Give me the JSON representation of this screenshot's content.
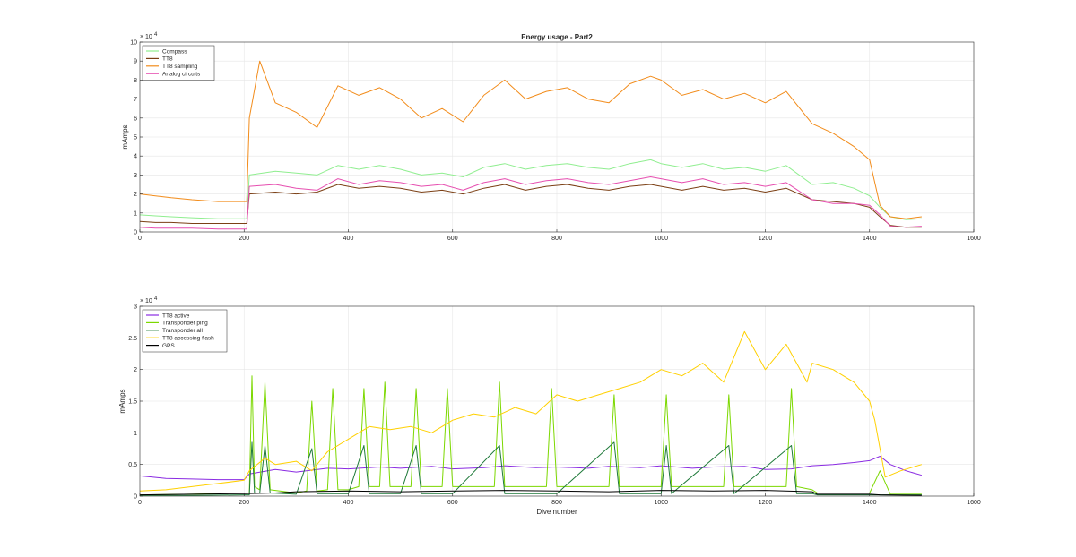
{
  "colors": {
    "compass": "#90ee90",
    "tt8": "#7b3f14",
    "tt8_sampling": "#f28c1b",
    "analog": "#e64fb0",
    "tt8_active": "#8a2be2",
    "transponder_ping": "#7cd800",
    "transponder_all": "#1f7a3a",
    "tt8_flash": "#ffd000",
    "gps": "#000000",
    "grid": "#e6e6e6",
    "axis": "#262626"
  },
  "chart_data": [
    {
      "type": "line",
      "title": "Energy usage - Part2",
      "xlabel": "",
      "ylabel": "mAmps",
      "y_exponent": "× 10",
      "y_exponent_power": "4",
      "xlim": [
        0,
        1600
      ],
      "ylim": [
        0,
        100000
      ],
      "xticks": [
        0,
        200,
        400,
        600,
        800,
        1000,
        1200,
        1400,
        1600
      ],
      "xtick_labels": [
        "0",
        "200",
        "400",
        "600",
        "800",
        "1000",
        "1200",
        "1400",
        "1600"
      ],
      "yticks": [
        0,
        10000,
        20000,
        30000,
        40000,
        50000,
        60000,
        70000,
        80000,
        90000,
        100000
      ],
      "ytick_labels": [
        "0",
        "1",
        "2",
        "3",
        "4",
        "5",
        "6",
        "7",
        "8",
        "9",
        "10"
      ],
      "grid": true,
      "legend_position": "top-left",
      "series": [
        {
          "name": "Compass",
          "color_key": "compass",
          "x": [
            0,
            30,
            60,
            100,
            150,
            205,
            210,
            260,
            300,
            340,
            380,
            420,
            460,
            500,
            540,
            580,
            620,
            660,
            700,
            740,
            780,
            820,
            860,
            900,
            940,
            980,
            1000,
            1040,
            1080,
            1120,
            1160,
            1200,
            1240,
            1290,
            1330,
            1370,
            1400,
            1420,
            1440,
            1470,
            1500
          ],
          "values": [
            9000,
            8500,
            8000,
            7500,
            7000,
            7000,
            30000,
            32000,
            31000,
            30000,
            35000,
            33000,
            35000,
            33000,
            30000,
            31000,
            29000,
            34000,
            36000,
            33000,
            35000,
            36000,
            34000,
            33000,
            36000,
            38000,
            36000,
            34000,
            36000,
            33000,
            34000,
            32000,
            35000,
            25000,
            26000,
            23000,
            19000,
            13000,
            8000,
            6500,
            7000
          ]
        },
        {
          "name": "TT8",
          "color_key": "tt8",
          "x": [
            0,
            30,
            60,
            100,
            150,
            205,
            210,
            260,
            300,
            340,
            380,
            420,
            460,
            500,
            540,
            580,
            620,
            660,
            700,
            740,
            780,
            820,
            860,
            900,
            940,
            980,
            1000,
            1040,
            1080,
            1120,
            1160,
            1200,
            1240,
            1290,
            1330,
            1370,
            1400,
            1420,
            1440,
            1470,
            1500
          ],
          "values": [
            5500,
            5000,
            5000,
            4500,
            4500,
            4500,
            20000,
            21000,
            20000,
            21000,
            25000,
            23000,
            24000,
            23000,
            21000,
            22000,
            20000,
            23000,
            25000,
            22000,
            24000,
            25000,
            23000,
            22000,
            24000,
            25000,
            24000,
            22000,
            24000,
            22000,
            23000,
            21000,
            23000,
            17000,
            16000,
            15000,
            13000,
            8000,
            3500,
            2500,
            2500
          ]
        },
        {
          "name": "TT8 sampling",
          "color_key": "tt8_sampling",
          "x": [
            0,
            30,
            60,
            100,
            150,
            205,
            210,
            230,
            260,
            300,
            340,
            380,
            420,
            460,
            500,
            540,
            580,
            620,
            660,
            700,
            740,
            780,
            820,
            860,
            900,
            940,
            980,
            1000,
            1040,
            1080,
            1120,
            1160,
            1200,
            1240,
            1290,
            1330,
            1370,
            1400,
            1420,
            1440,
            1470,
            1500
          ],
          "values": [
            20000,
            19000,
            18000,
            17000,
            16000,
            16000,
            60000,
            90000,
            68000,
            63000,
            55000,
            77000,
            72000,
            76000,
            70000,
            60000,
            65000,
            58000,
            72000,
            80000,
            70000,
            74000,
            76000,
            70000,
            68000,
            78000,
            82000,
            80000,
            72000,
            75000,
            70000,
            73000,
            68000,
            74000,
            57000,
            52000,
            45000,
            38000,
            14000,
            8000,
            7000,
            8000
          ]
        },
        {
          "name": "Analog circuits",
          "color_key": "analog",
          "x": [
            0,
            30,
            60,
            100,
            150,
            205,
            210,
            260,
            300,
            340,
            380,
            420,
            460,
            500,
            540,
            580,
            620,
            660,
            700,
            740,
            780,
            820,
            860,
            900,
            940,
            980,
            1000,
            1040,
            1080,
            1120,
            1160,
            1200,
            1240,
            1290,
            1330,
            1370,
            1400,
            1420,
            1440,
            1470,
            1500
          ],
          "values": [
            2500,
            2000,
            2000,
            2000,
            1500,
            1500,
            24000,
            25000,
            23000,
            22000,
            28000,
            25000,
            27000,
            26000,
            24000,
            25000,
            22000,
            26000,
            28000,
            25000,
            27000,
            28000,
            26000,
            25000,
            27000,
            29000,
            28000,
            26000,
            28000,
            25000,
            26000,
            24000,
            26000,
            17000,
            15000,
            15000,
            14000,
            9000,
            3000,
            2500,
            3000
          ]
        }
      ]
    },
    {
      "type": "line",
      "title": "",
      "xlabel": "Dive number",
      "ylabel": "mAmps",
      "y_exponent": "× 10",
      "y_exponent_power": "4",
      "xlim": [
        0,
        1600
      ],
      "ylim": [
        0,
        30000
      ],
      "xticks": [
        0,
        200,
        400,
        600,
        800,
        1000,
        1200,
        1400,
        1600
      ],
      "xtick_labels": [
        "0",
        "200",
        "400",
        "600",
        "800",
        "1000",
        "1200",
        "1400",
        "1600"
      ],
      "yticks": [
        0,
        5000,
        10000,
        15000,
        20000,
        25000,
        30000
      ],
      "ytick_labels": [
        "0",
        "0.5",
        "1",
        "1.5",
        "2",
        "2.5",
        "3"
      ],
      "grid": true,
      "legend_position": "top-left",
      "series": [
        {
          "name": "TT8 active",
          "color_key": "tt8_active",
          "x": [
            0,
            50,
            100,
            150,
            200,
            210,
            260,
            300,
            360,
            400,
            460,
            500,
            560,
            600,
            660,
            700,
            760,
            800,
            860,
            900,
            960,
            1000,
            1060,
            1100,
            1160,
            1200,
            1250,
            1290,
            1330,
            1370,
            1400,
            1420,
            1440,
            1470,
            1500
          ],
          "values": [
            3200,
            2800,
            2700,
            2600,
            2600,
            3500,
            4200,
            3800,
            4400,
            4300,
            4600,
            4400,
            4700,
            4300,
            4500,
            4800,
            4500,
            4600,
            4400,
            4700,
            4500,
            4800,
            4400,
            4600,
            4700,
            4200,
            4300,
            4800,
            5000,
            5300,
            5600,
            6300,
            5000,
            4000,
            3300
          ]
        },
        {
          "name": "Transponder ping",
          "color_key": "transponder_ping",
          "x": [
            0,
            100,
            200,
            210,
            215,
            220,
            230,
            240,
            250,
            300,
            320,
            330,
            340,
            360,
            370,
            380,
            390,
            400,
            420,
            430,
            440,
            460,
            470,
            480,
            520,
            530,
            540,
            580,
            590,
            600,
            680,
            690,
            700,
            780,
            790,
            800,
            900,
            910,
            920,
            1000,
            1010,
            1020,
            1120,
            1130,
            1140,
            1240,
            1250,
            1260,
            1290,
            1300,
            1400,
            1420,
            1440,
            1500
          ],
          "values": [
            200,
            300,
            500,
            500,
            19000,
            1500,
            1000,
            18000,
            1000,
            500,
            800,
            15000,
            800,
            1000,
            17000,
            1000,
            1000,
            1000,
            1500,
            17000,
            1500,
            1500,
            18000,
            1500,
            1500,
            17000,
            1500,
            1500,
            17000,
            1500,
            1500,
            18000,
            1500,
            1500,
            17000,
            1500,
            1500,
            16000,
            1500,
            1500,
            16000,
            1500,
            1500,
            16000,
            1500,
            1500,
            17000,
            1500,
            1000,
            500,
            500,
            4000,
            300,
            300
          ]
        },
        {
          "name": "Transponder all",
          "color_key": "transponder_all",
          "x": [
            0,
            100,
            200,
            210,
            215,
            220,
            230,
            240,
            250,
            300,
            330,
            340,
            400,
            430,
            440,
            500,
            530,
            540,
            600,
            690,
            700,
            800,
            910,
            920,
            1000,
            1010,
            1020,
            1130,
            1140,
            1250,
            1260,
            1290,
            1300,
            1400,
            1500
          ],
          "values": [
            100,
            100,
            200,
            200,
            8500,
            500,
            500,
            8000,
            500,
            300,
            7500,
            400,
            400,
            8000,
            400,
            400,
            8000,
            400,
            400,
            8000,
            400,
            400,
            8500,
            400,
            400,
            8000,
            400,
            8000,
            400,
            8000,
            400,
            400,
            200,
            200,
            200
          ]
        },
        {
          "name": "TT8 accessing flash",
          "color_key": "tt8_flash",
          "x": [
            0,
            50,
            100,
            150,
            200,
            210,
            240,
            260,
            300,
            330,
            360,
            400,
            440,
            480,
            520,
            560,
            600,
            640,
            680,
            720,
            760,
            800,
            840,
            880,
            920,
            960,
            1000,
            1040,
            1080,
            1120,
            1160,
            1200,
            1240,
            1280,
            1290,
            1330,
            1370,
            1400,
            1410,
            1430,
            1460,
            1500
          ],
          "values": [
            800,
            1000,
            1500,
            2000,
            2500,
            4000,
            6000,
            5000,
            5500,
            4000,
            7000,
            9000,
            11000,
            10500,
            11000,
            10000,
            12000,
            13000,
            12500,
            14000,
            13000,
            16000,
            15000,
            16000,
            17000,
            18000,
            20000,
            19000,
            21000,
            18000,
            26000,
            20000,
            24000,
            18000,
            21000,
            20000,
            18000,
            15000,
            12000,
            3000,
            4000,
            5000
          ]
        },
        {
          "name": "GPS",
          "color_key": "gps",
          "x": [
            0,
            100,
            200,
            260,
            300,
            400,
            500,
            600,
            700,
            800,
            900,
            1000,
            1100,
            1200,
            1290,
            1300,
            1400,
            1420,
            1500
          ],
          "values": [
            200,
            300,
            400,
            500,
            700,
            800,
            700,
            800,
            900,
            800,
            700,
            900,
            800,
            900,
            700,
            300,
            300,
            200,
            100
          ]
        }
      ]
    }
  ]
}
